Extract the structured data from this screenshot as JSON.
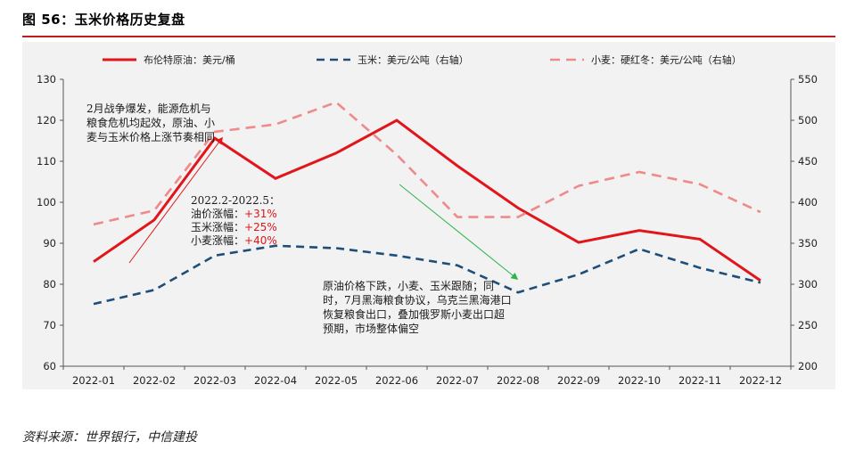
{
  "figure": {
    "title": "图 56：玉米价格历史复盘",
    "source": "资料来源：世界银行，中信建投"
  },
  "chart_data": {
    "type": "line",
    "categories": [
      "2022-01",
      "2022-02",
      "2022-03",
      "2022-04",
      "2022-05",
      "2022-06",
      "2022-07",
      "2022-08",
      "2022-09",
      "2022-10",
      "2022-11",
      "2022-12"
    ],
    "y_left": {
      "min": 60,
      "max": 130,
      "ticks": [
        60,
        70,
        80,
        90,
        100,
        110,
        120,
        130
      ]
    },
    "y_right": {
      "min": 200,
      "max": 550,
      "ticks": [
        200,
        250,
        300,
        350,
        400,
        450,
        500,
        550
      ]
    },
    "series": [
      {
        "name": "布伦特原油：美元/桶",
        "axis": "left",
        "style": "solid",
        "color": "#e0161b",
        "values": [
          85.5,
          95.7,
          115.6,
          105.8,
          112.0,
          120.0,
          108.9,
          98.6,
          90.2,
          93.1,
          91.0,
          80.9
        ]
      },
      {
        "name": "玉米：美元/公吨（右轴）",
        "axis": "right",
        "style": "dashed",
        "color": "#1f4e79",
        "values": [
          276,
          293,
          335,
          347,
          344,
          335,
          323,
          290,
          312,
          343,
          320,
          302
        ]
      },
      {
        "name": "小麦：硬红冬：美元/公吨（右轴）",
        "axis": "right",
        "style": "dashed",
        "color": "#ef8a8a",
        "values": [
          373,
          390,
          486,
          495,
          522,
          458,
          382,
          382,
          420,
          437,
          422,
          388
        ]
      }
    ]
  },
  "annotations": {
    "note_1": "2月战争爆发，能源危机与粮食危机均起效，原油、小麦与玉米价格上涨节奏相同",
    "note_2": {
      "range": "2022.2-2022.5：",
      "rows": [
        {
          "label": "油价涨幅：",
          "value": "+31%"
        },
        {
          "label": "玉米涨幅：",
          "value": "+25%"
        },
        {
          "label": "小麦涨幅：",
          "value": "+40%"
        }
      ]
    },
    "note_3": "原油价格下跌，小麦、玉米跟随；同时，7月黑海粮食协议，乌克兰黑海港口恢复粮食出口，叠加俄罗斯小麦出口超预期，市场整体偏空",
    "arrow_up_color": "#e0161b",
    "arrow_down_color": "#2cb34a"
  }
}
